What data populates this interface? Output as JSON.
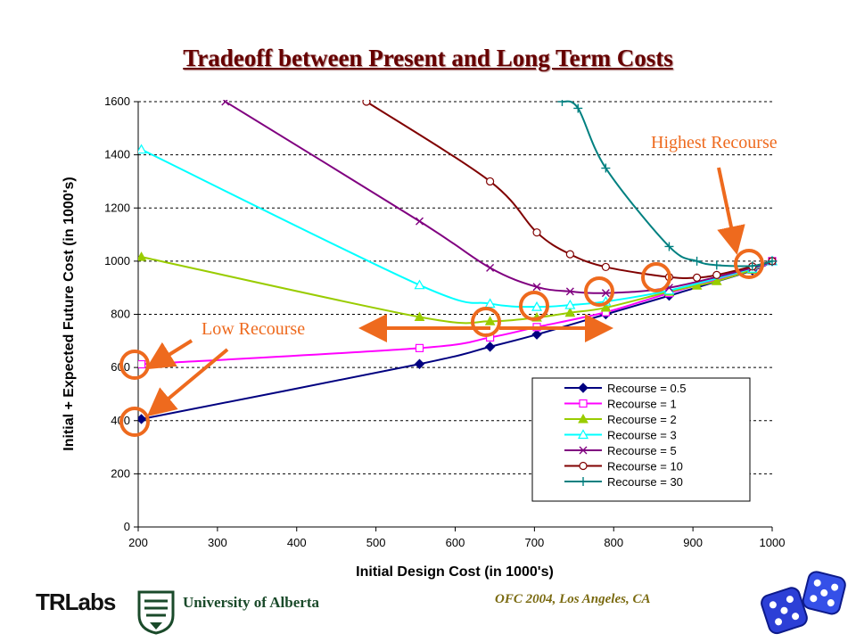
{
  "slide": {
    "title": "Tradeoff between Present and Long Term Costs",
    "footer": "OFC 2004, Los Angeles, CA",
    "logo_trlabs": "TRLabs",
    "logo_ua": "University of Alberta"
  },
  "annotations": {
    "low": "Low Recourse",
    "high": "Highest Recourse",
    "arrow_color": "#ee6a1e"
  },
  "chart_data": {
    "type": "line",
    "title": "",
    "xlabel": "Initial Design Cost (in 1000's)",
    "ylabel": "Initial + Expected Future Cost (in 1000's)",
    "xlim": [
      200,
      1000
    ],
    "ylim": [
      0,
      1600
    ],
    "xticks": [
      200,
      300,
      400,
      500,
      600,
      700,
      800,
      900,
      1000
    ],
    "yticks": [
      0,
      200,
      400,
      600,
      800,
      1000,
      1200,
      1400,
      1600
    ],
    "grid": "horizontal dashed",
    "legend_position": "bottom-right",
    "series": [
      {
        "name": "Recourse = 0.5",
        "color": "#000080",
        "marker": "diamond",
        "x": [
          204,
          555,
          644,
          703,
          790,
          870,
          975,
          1000
        ],
        "y": [
          406,
          613,
          678,
          724,
          800,
          870,
          965,
          1000
        ]
      },
      {
        "name": "Recourse = 1",
        "color": "#ff00ff",
        "marker": "square",
        "x": [
          204,
          555,
          644,
          703,
          790,
          870,
          975,
          1000
        ],
        "y": [
          612,
          673,
          713,
          752,
          808,
          880,
          968,
          1000
        ]
      },
      {
        "name": "Recourse = 2",
        "color": "#99cc00",
        "marker": "triangle",
        "x": [
          204,
          555,
          644,
          703,
          745,
          790,
          870,
          905,
          930,
          975,
          1000
        ],
        "y": [
          1016,
          790,
          774,
          788,
          806,
          825,
          885,
          908,
          925,
          968,
          1000
        ]
      },
      {
        "name": "Recourse = 3",
        "color": "#00ffff",
        "marker": "triangle-open",
        "x": [
          204,
          555,
          644,
          703,
          745,
          790,
          870,
          975,
          1000
        ],
        "y": [
          1420,
          910,
          840,
          828,
          835,
          848,
          890,
          972,
          1000
        ]
      },
      {
        "name": "Recourse = 5",
        "color": "#800080",
        "marker": "x",
        "x": [
          310,
          555,
          644,
          703,
          745,
          790,
          870,
          975,
          1000
        ],
        "y": [
          1600,
          1150,
          975,
          903,
          886,
          880,
          900,
          975,
          1000
        ]
      },
      {
        "name": "Recourse = 10",
        "color": "#800000",
        "marker": "circle",
        "x": [
          488,
          644,
          703,
          745,
          790,
          870,
          905,
          930,
          975,
          1000
        ],
        "y": [
          1600,
          1300,
          1108,
          1026,
          978,
          940,
          938,
          948,
          980,
          1000
        ]
      },
      {
        "name": "Recourse = 30",
        "color": "#008080",
        "marker": "plus",
        "x": [
          735,
          755,
          790,
          870,
          905,
          930,
          975,
          1000
        ],
        "y": [
          1600,
          1575,
          1350,
          1055,
          1000,
          985,
          982,
          1000
        ]
      }
    ]
  }
}
